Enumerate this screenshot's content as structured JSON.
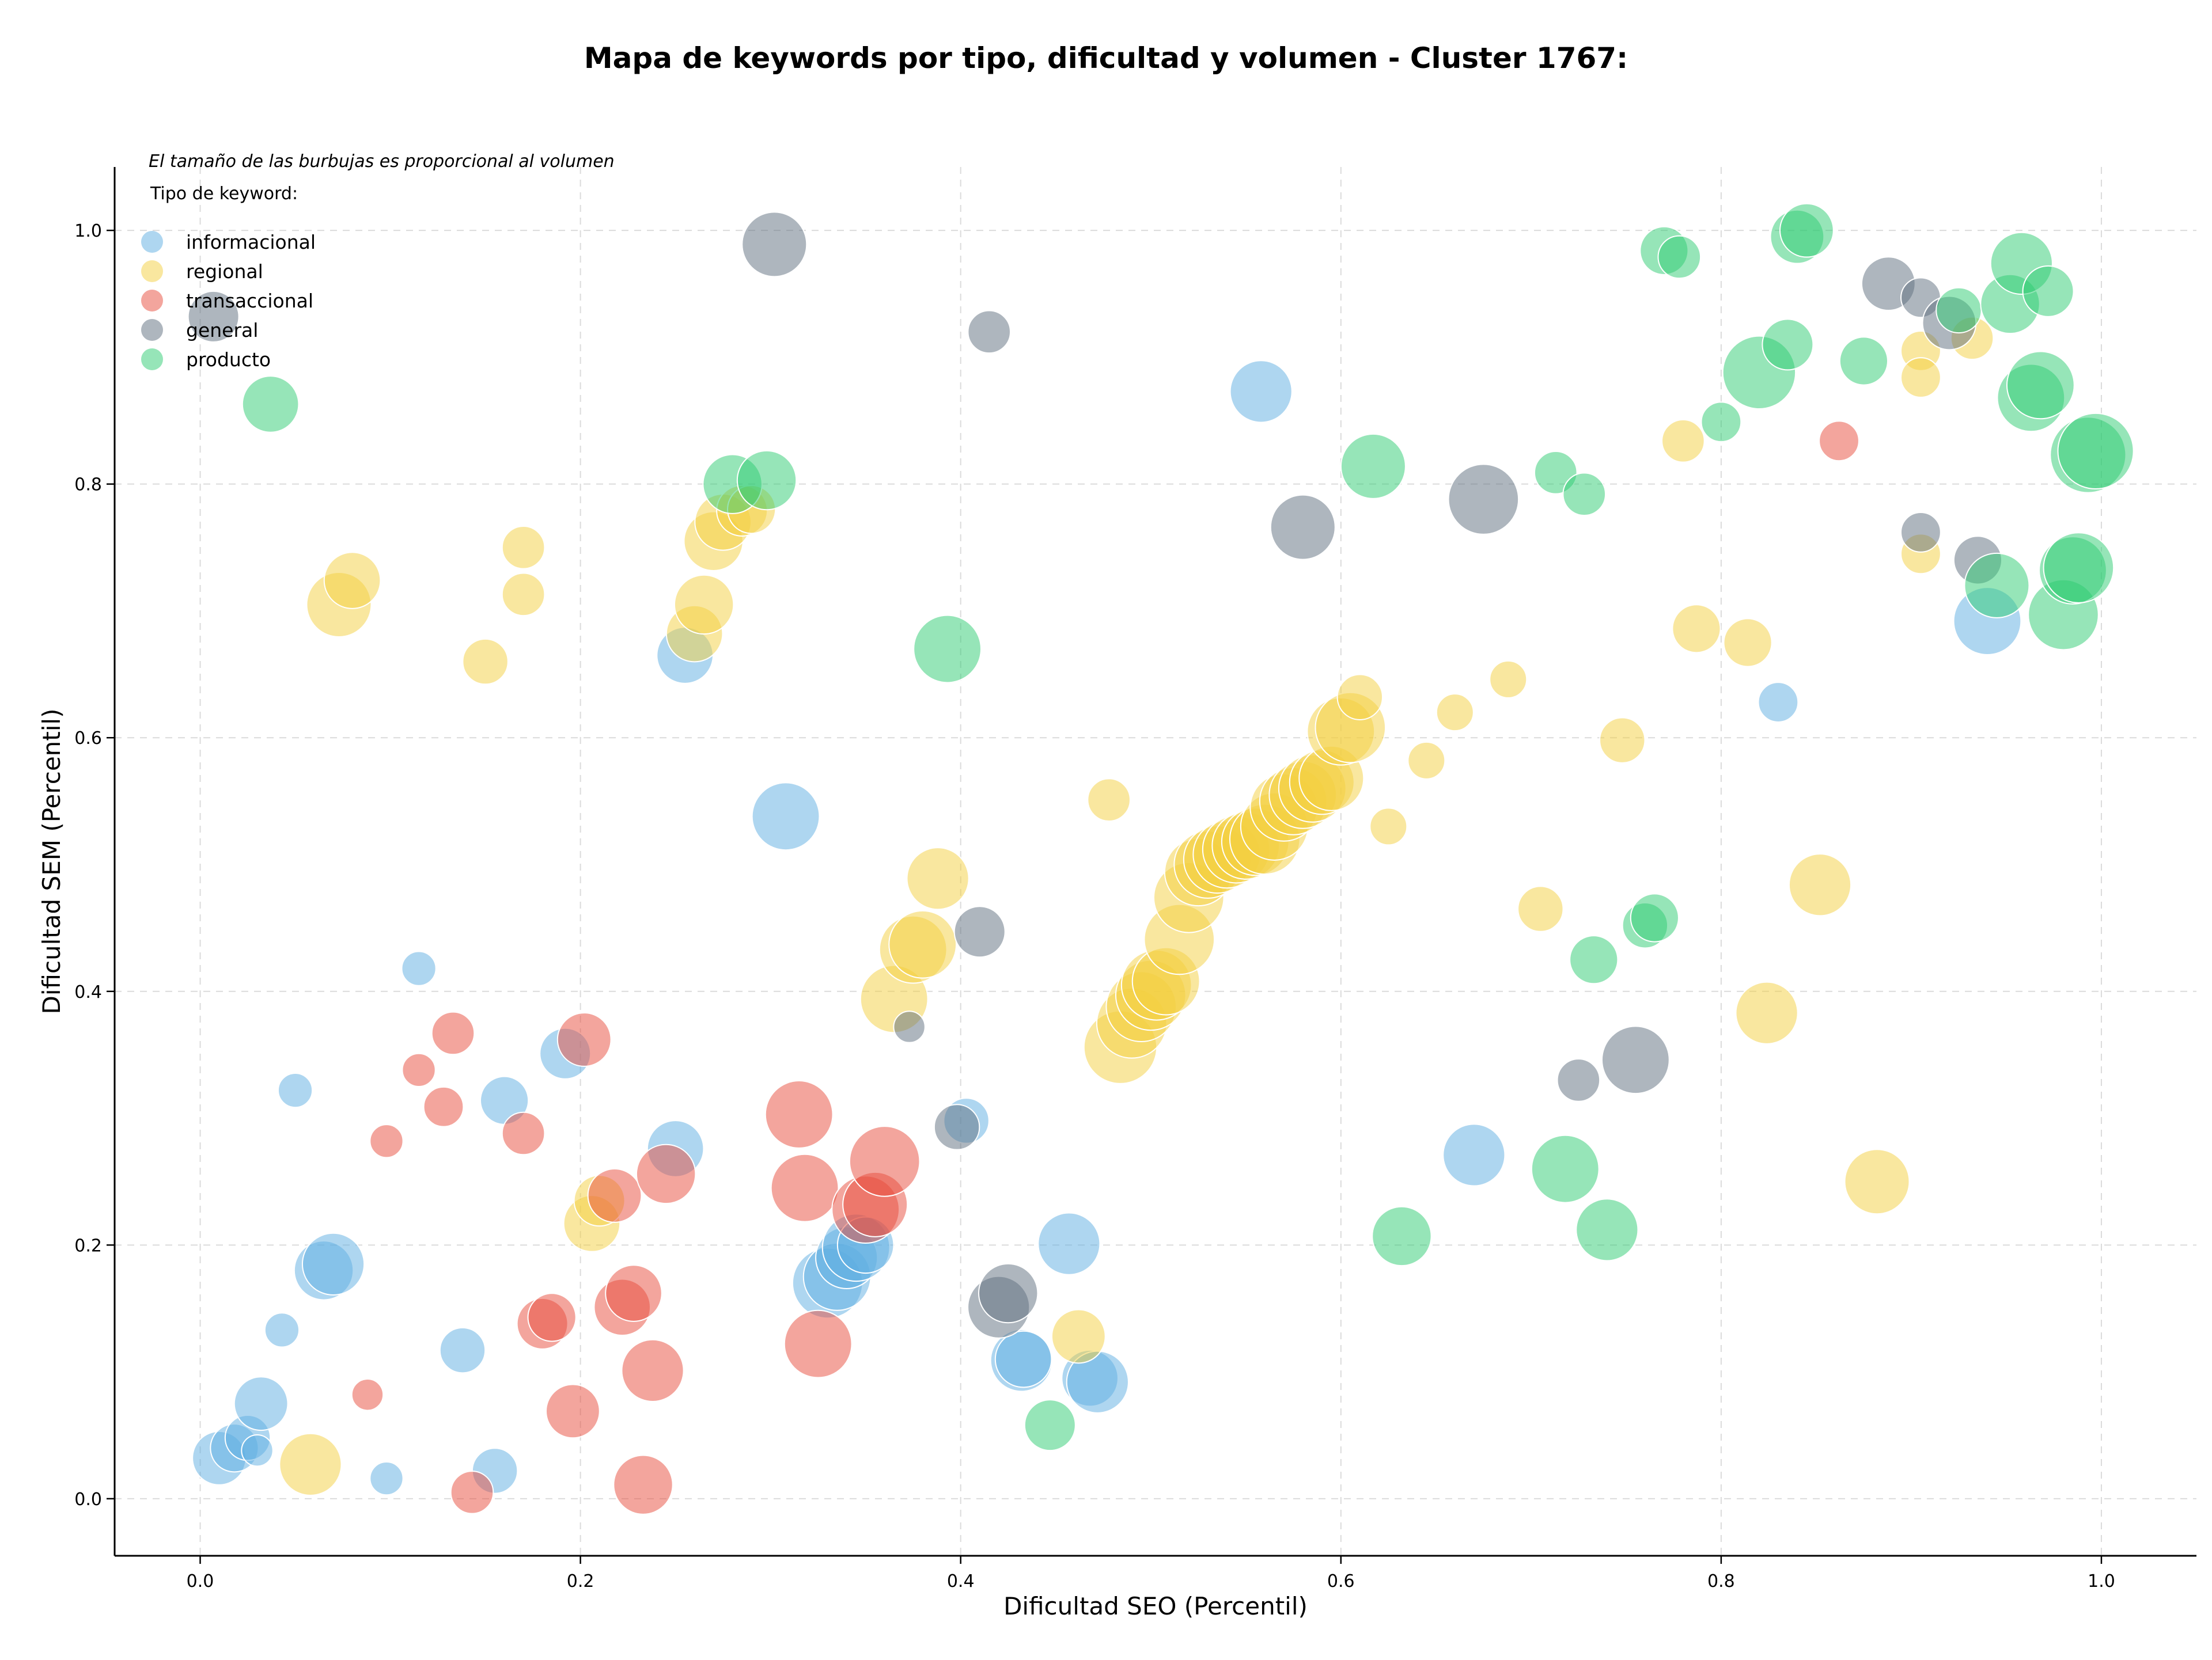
{
  "chart_data": {
    "type": "scatter",
    "title": "Mapa de keywords por tipo, dificultad y volumen - Cluster 1767:",
    "xlabel": "Dificultad SEO (Percentil)",
    "ylabel": "Dificultad SEM (Percentil)",
    "xlim": [
      -0.045,
      1.05
    ],
    "ylim": [
      -0.045,
      1.05
    ],
    "xticks": [
      "0.0",
      "0.2",
      "0.4",
      "0.6",
      "0.8",
      "1.0"
    ],
    "yticks": [
      "0.0",
      "0.2",
      "0.4",
      "0.6",
      "0.8",
      "1.0"
    ],
    "grid": true,
    "note": "El tamaño de las burbujas es proporcional al volumen",
    "legend": {
      "title": "Tipo de keyword:",
      "position": "top-left"
    },
    "series": [
      {
        "name": "informacional",
        "color": "#5dade2",
        "points": [
          [
            0.01,
            0.032,
            0.55
          ],
          [
            0.018,
            0.04,
            0.45
          ],
          [
            0.025,
            0.048,
            0.4
          ],
          [
            0.03,
            0.038,
            0.15
          ],
          [
            0.032,
            0.075,
            0.55
          ],
          [
            0.043,
            0.133,
            0.2
          ],
          [
            0.05,
            0.322,
            0.2
          ],
          [
            0.065,
            0.18,
            0.65
          ],
          [
            0.07,
            0.185,
            0.7
          ],
          [
            0.098,
            0.016,
            0.18
          ],
          [
            0.115,
            0.418,
            0.2
          ],
          [
            0.138,
            0.117,
            0.4
          ],
          [
            0.155,
            0.022,
            0.4
          ],
          [
            0.16,
            0.314,
            0.45
          ],
          [
            0.192,
            0.351,
            0.5
          ],
          [
            0.25,
            0.276,
            0.6
          ],
          [
            0.255,
            0.665,
            0.6
          ],
          [
            0.308,
            0.538,
            0.8
          ],
          [
            0.33,
            0.17,
            0.85
          ],
          [
            0.335,
            0.175,
            0.8
          ],
          [
            0.34,
            0.19,
            0.7
          ],
          [
            0.345,
            0.198,
            0.8
          ],
          [
            0.35,
            0.2,
            0.6
          ],
          [
            0.403,
            0.298,
            0.4
          ],
          [
            0.432,
            0.109,
            0.7
          ],
          [
            0.433,
            0.11,
            0.6
          ],
          [
            0.457,
            0.201,
            0.7
          ],
          [
            0.468,
            0.095,
            0.6
          ],
          [
            0.472,
            0.092,
            0.7
          ],
          [
            0.558,
            0.873,
            0.7
          ],
          [
            0.67,
            0.271,
            0.7
          ],
          [
            0.83,
            0.628,
            0.3
          ],
          [
            0.94,
            0.692,
            0.8
          ]
        ]
      },
      {
        "name": "regional",
        "color": "#f4d03f",
        "points": [
          [
            0.058,
            0.027,
            0.7
          ],
          [
            0.073,
            0.705,
            0.75
          ],
          [
            0.08,
            0.724,
            0.6
          ],
          [
            0.15,
            0.66,
            0.4
          ],
          [
            0.17,
            0.75,
            0.35
          ],
          [
            0.17,
            0.713,
            0.35
          ],
          [
            0.206,
            0.217,
            0.6
          ],
          [
            0.21,
            0.235,
            0.5
          ],
          [
            0.26,
            0.682,
            0.6
          ],
          [
            0.265,
            0.705,
            0.65
          ],
          [
            0.27,
            0.755,
            0.65
          ],
          [
            0.275,
            0.77,
            0.6
          ],
          [
            0.285,
            0.779,
            0.5
          ],
          [
            0.29,
            0.78,
            0.45
          ],
          [
            0.365,
            0.394,
            0.8
          ],
          [
            0.375,
            0.433,
            0.8
          ],
          [
            0.38,
            0.437,
            0.8
          ],
          [
            0.388,
            0.489,
            0.7
          ],
          [
            0.462,
            0.128,
            0.55
          ],
          [
            0.478,
            0.551,
            0.35
          ],
          [
            0.484,
            0.356,
            0.9
          ],
          [
            0.49,
            0.375,
            0.85
          ],
          [
            0.495,
            0.388,
            0.85
          ],
          [
            0.5,
            0.397,
            0.85
          ],
          [
            0.503,
            0.405,
            0.85
          ],
          [
            0.508,
            0.408,
            0.8
          ],
          [
            0.515,
            0.441,
            0.85
          ],
          [
            0.52,
            0.474,
            0.85
          ],
          [
            0.525,
            0.494,
            0.8
          ],
          [
            0.53,
            0.5,
            0.8
          ],
          [
            0.535,
            0.504,
            0.8
          ],
          [
            0.54,
            0.508,
            0.8
          ],
          [
            0.545,
            0.512,
            0.8
          ],
          [
            0.55,
            0.515,
            0.8
          ],
          [
            0.555,
            0.518,
            0.8
          ],
          [
            0.56,
            0.52,
            0.85
          ],
          [
            0.565,
            0.53,
            0.8
          ],
          [
            0.57,
            0.545,
            0.8
          ],
          [
            0.575,
            0.55,
            0.8
          ],
          [
            0.58,
            0.555,
            0.8
          ],
          [
            0.585,
            0.56,
            0.8
          ],
          [
            0.59,
            0.565,
            0.75
          ],
          [
            0.595,
            0.568,
            0.75
          ],
          [
            0.6,
            0.605,
            0.8
          ],
          [
            0.605,
            0.608,
            0.85
          ],
          [
            0.61,
            0.632,
            0.4
          ],
          [
            0.625,
            0.53,
            0.25
          ],
          [
            0.645,
            0.582,
            0.25
          ],
          [
            0.66,
            0.62,
            0.25
          ],
          [
            0.688,
            0.646,
            0.25
          ],
          [
            0.705,
            0.465,
            0.4
          ],
          [
            0.748,
            0.598,
            0.4
          ],
          [
            0.78,
            0.834,
            0.35
          ],
          [
            0.787,
            0.686,
            0.45
          ],
          [
            0.814,
            0.675,
            0.45
          ],
          [
            0.824,
            0.383,
            0.7
          ],
          [
            0.852,
            0.484,
            0.7
          ],
          [
            0.882,
            0.25,
            0.75
          ],
          [
            0.905,
            0.745,
            0.3
          ],
          [
            0.905,
            0.905,
            0.3
          ],
          [
            0.905,
            0.884,
            0.3
          ],
          [
            0.932,
            0.915,
            0.35
          ]
        ]
      },
      {
        "name": "transaccional",
        "color": "#e74c3c",
        "points": [
          [
            0.088,
            0.082,
            0.15
          ],
          [
            0.098,
            0.282,
            0.18
          ],
          [
            0.115,
            0.338,
            0.18
          ],
          [
            0.128,
            0.309,
            0.3
          ],
          [
            0.133,
            0.367,
            0.35
          ],
          [
            0.143,
            0.005,
            0.35
          ],
          [
            0.17,
            0.288,
            0.35
          ],
          [
            0.18,
            0.138,
            0.5
          ],
          [
            0.185,
            0.143,
            0.45
          ],
          [
            0.196,
            0.069,
            0.55
          ],
          [
            0.202,
            0.362,
            0.55
          ],
          [
            0.218,
            0.239,
            0.55
          ],
          [
            0.222,
            0.151,
            0.6
          ],
          [
            0.228,
            0.162,
            0.6
          ],
          [
            0.233,
            0.011,
            0.65
          ],
          [
            0.238,
            0.101,
            0.7
          ],
          [
            0.245,
            0.256,
            0.65
          ],
          [
            0.315,
            0.303,
            0.8
          ],
          [
            0.318,
            0.245,
            0.8
          ],
          [
            0.325,
            0.122,
            0.8
          ],
          [
            0.35,
            0.228,
            0.8
          ],
          [
            0.355,
            0.232,
            0.75
          ],
          [
            0.36,
            0.266,
            0.85
          ],
          [
            0.862,
            0.834,
            0.3
          ]
        ]
      },
      {
        "name": "general",
        "color": "#5d6d7e",
        "points": [
          [
            0.007,
            0.932,
            0.5
          ],
          [
            0.302,
            0.989,
            0.75
          ],
          [
            0.373,
            0.372,
            0.15
          ],
          [
            0.398,
            0.293,
            0.4
          ],
          [
            0.41,
            0.447,
            0.5
          ],
          [
            0.415,
            0.92,
            0.35
          ],
          [
            0.42,
            0.151,
            0.7
          ],
          [
            0.425,
            0.162,
            0.65
          ],
          [
            0.58,
            0.766,
            0.75
          ],
          [
            0.675,
            0.788,
            0.85
          ],
          [
            0.725,
            0.33,
            0.35
          ],
          [
            0.755,
            0.346,
            0.8
          ],
          [
            0.888,
            0.958,
            0.55
          ],
          [
            0.905,
            0.762,
            0.3
          ],
          [
            0.905,
            0.947,
            0.3
          ],
          [
            0.92,
            0.927,
            0.55
          ],
          [
            0.935,
            0.74,
            0.45
          ]
        ]
      },
      {
        "name": "producto",
        "color": "#2ecc71",
        "points": [
          [
            0.037,
            0.863,
            0.6
          ],
          [
            0.28,
            0.8,
            0.65
          ],
          [
            0.298,
            0.803,
            0.65
          ],
          [
            0.393,
            0.67,
            0.8
          ],
          [
            0.447,
            0.058,
            0.5
          ],
          [
            0.617,
            0.814,
            0.75
          ],
          [
            0.632,
            0.207,
            0.65
          ],
          [
            0.713,
            0.809,
            0.35
          ],
          [
            0.718,
            0.26,
            0.8
          ],
          [
            0.728,
            0.792,
            0.35
          ],
          [
            0.733,
            0.425,
            0.45
          ],
          [
            0.74,
            0.212,
            0.7
          ],
          [
            0.76,
            0.452,
            0.4
          ],
          [
            0.765,
            0.458,
            0.45
          ],
          [
            0.77,
            0.984,
            0.45
          ],
          [
            0.778,
            0.979,
            0.35
          ],
          [
            0.8,
            0.849,
            0.3
          ],
          [
            0.82,
            0.888,
            0.9
          ],
          [
            0.835,
            0.91,
            0.5
          ],
          [
            0.84,
            0.995,
            0.55
          ],
          [
            0.845,
            1.0,
            0.55
          ],
          [
            0.875,
            0.897,
            0.45
          ],
          [
            0.925,
            0.937,
            0.4
          ],
          [
            0.945,
            0.72,
            0.75
          ],
          [
            0.952,
            0.942,
            0.65
          ],
          [
            0.958,
            0.974,
            0.7
          ],
          [
            0.963,
            0.868,
            0.8
          ],
          [
            0.968,
            0.878,
            0.8
          ],
          [
            0.972,
            0.952,
            0.5
          ],
          [
            0.98,
            0.697,
            0.85
          ],
          [
            0.985,
            0.732,
            0.8
          ],
          [
            0.988,
            0.734,
            0.85
          ],
          [
            0.993,
            0.823,
            0.95
          ],
          [
            0.997,
            0.826,
            0.95
          ]
        ]
      }
    ]
  }
}
